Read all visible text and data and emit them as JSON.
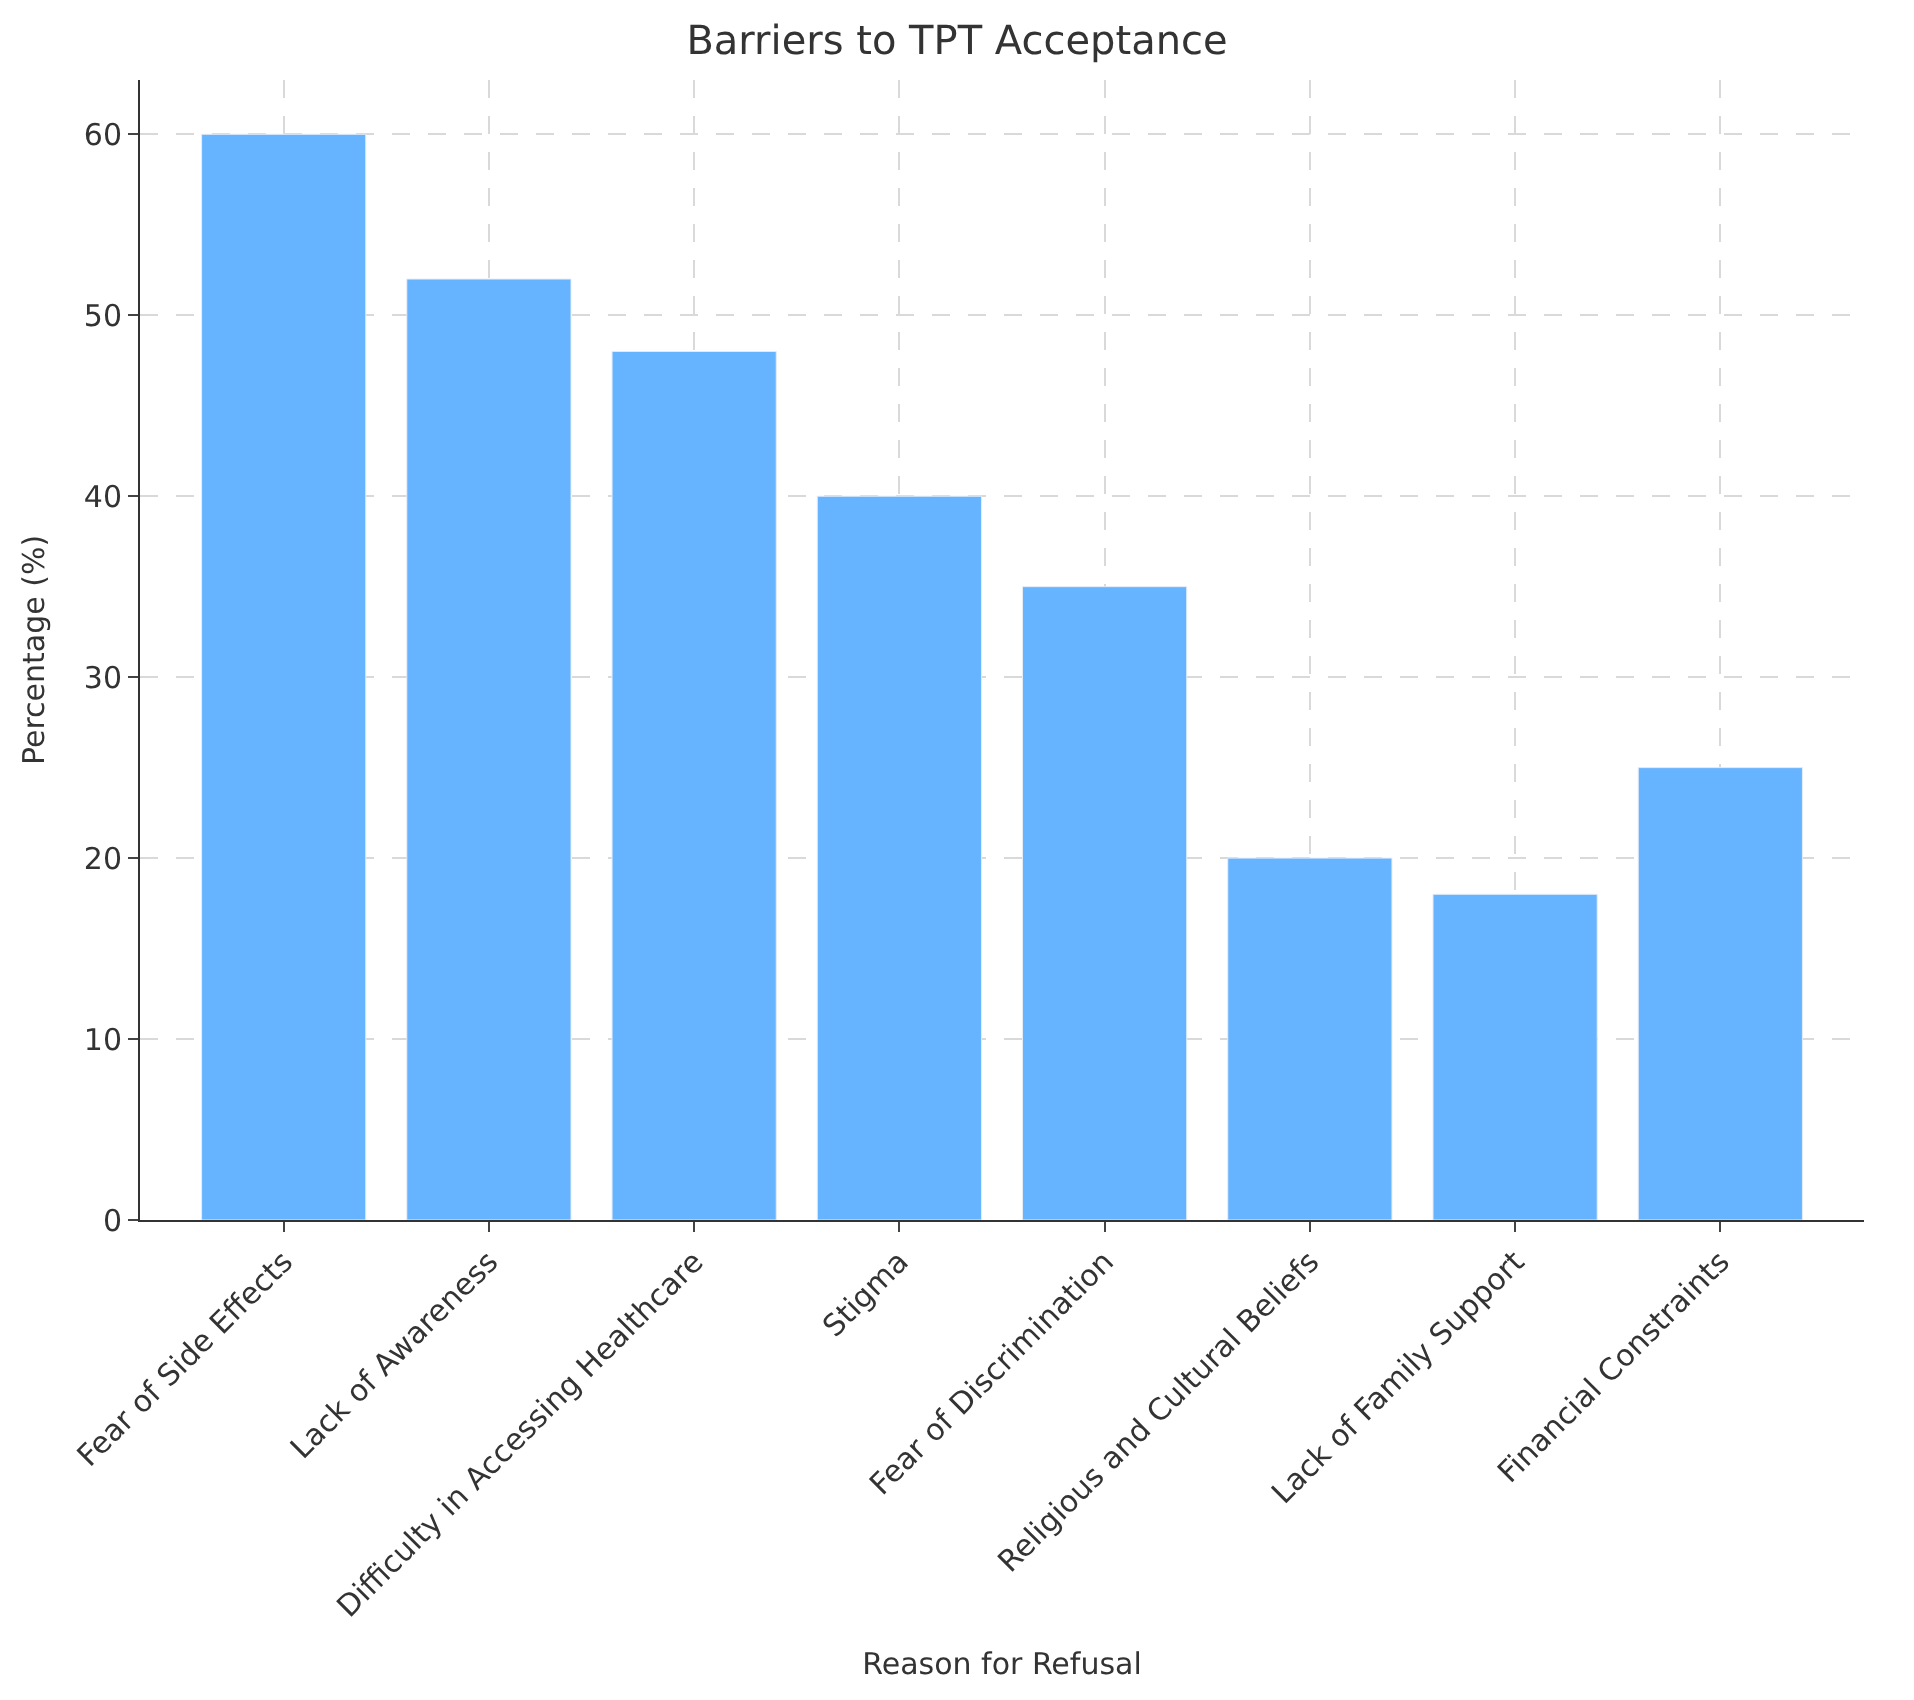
{
  "chart_data": {
    "type": "bar",
    "title": "Barriers to TPT Acceptance",
    "xlabel": "Reason for Refusal",
    "ylabel": "Percentage (%)",
    "categories": [
      "Fear of Side Effects",
      "Lack of Awareness",
      "Difficulty in Accessing Healthcare",
      "Stigma",
      "Fear of Discrimination",
      "Religious and Cultural Beliefs",
      "Lack of Family Support",
      "Financial Constraints"
    ],
    "values": [
      60,
      52,
      48,
      40,
      35,
      20,
      18,
      25
    ],
    "color": "#66b3ff",
    "ylim": [
      0,
      63
    ],
    "yticks": [
      0,
      10,
      20,
      30,
      40,
      50,
      60
    ],
    "grid": true
  }
}
